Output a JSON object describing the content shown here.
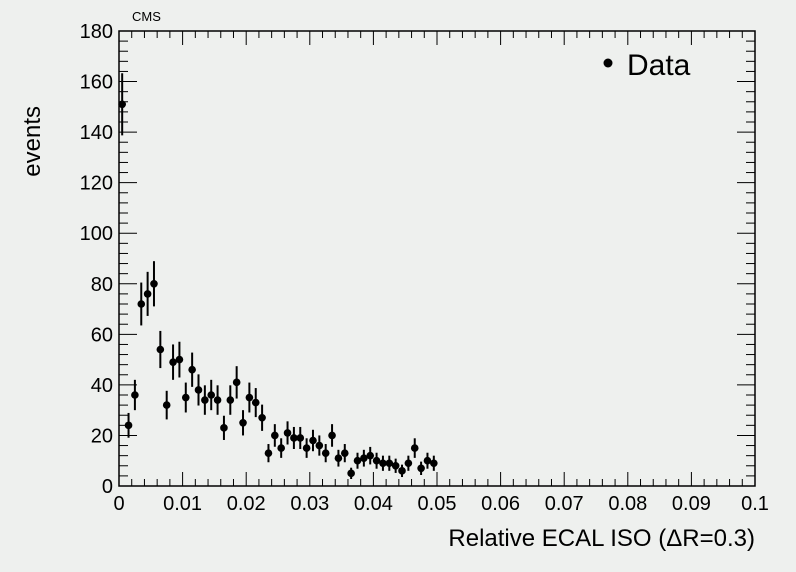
{
  "chart_data": {
    "type": "scatter",
    "experiment_label": "CMS",
    "xlabel": "Relative ECAL ISO (ΔR=0.3)",
    "ylabel": "events",
    "xlim": [
      0,
      0.1
    ],
    "ylim": [
      0,
      180
    ],
    "x_ticks": [
      "0",
      "0.01",
      "0.02",
      "0.03",
      "0.04",
      "0.05",
      "0.06",
      "0.07",
      "0.08",
      "0.09",
      "0.1"
    ],
    "y_ticks": [
      "0",
      "20",
      "40",
      "60",
      "80",
      "100",
      "120",
      "140",
      "160",
      "180"
    ],
    "legend": {
      "position": "top-right",
      "entries": [
        "Data"
      ]
    },
    "grid": false,
    "series": [
      {
        "name": "Data",
        "marker": "filled-circle",
        "color": "#000000",
        "error_bars": "sqrt(N)",
        "x": [
          0.0005,
          0.0015,
          0.0025,
          0.0035,
          0.0045,
          0.0055,
          0.0065,
          0.0075,
          0.0085,
          0.0095,
          0.0105,
          0.0115,
          0.0125,
          0.0135,
          0.0145,
          0.0155,
          0.0165,
          0.0175,
          0.0185,
          0.0195,
          0.0205,
          0.0215,
          0.0225,
          0.0235,
          0.0245,
          0.0255,
          0.0265,
          0.0275,
          0.0285,
          0.0295,
          0.0305,
          0.0315,
          0.0325,
          0.0335,
          0.0345,
          0.0355,
          0.0365,
          0.0375,
          0.0385,
          0.0395,
          0.0405,
          0.0415,
          0.0425,
          0.0435,
          0.0445,
          0.0455,
          0.0465,
          0.0475,
          0.0485,
          0.0495
        ],
        "y": [
          151,
          24,
          36,
          72,
          76,
          80,
          54,
          32,
          49,
          50,
          35,
          46,
          38,
          34,
          36,
          34,
          23,
          34,
          41,
          25,
          35,
          33,
          27,
          13,
          20,
          15,
          21,
          19,
          19,
          15,
          18,
          16,
          13,
          20,
          11,
          13,
          5,
          10,
          11,
          12,
          10,
          9,
          9,
          8,
          6,
          9,
          15,
          7,
          10,
          9
        ]
      }
    ]
  }
}
